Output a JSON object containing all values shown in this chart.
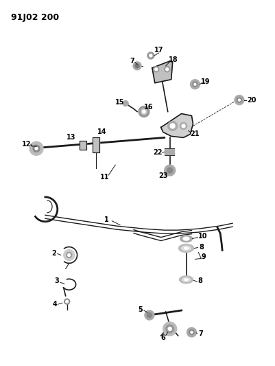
{
  "title": "91J02 200",
  "bg": "#ffffff",
  "lc": "#1a1a1a",
  "tc": "#000000",
  "fw": 4.01,
  "fh": 5.33,
  "dpi": 100
}
